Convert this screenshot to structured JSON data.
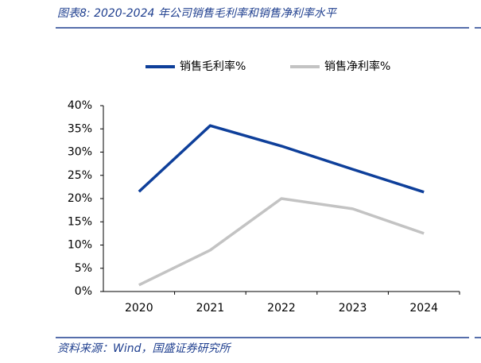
{
  "chart_data": {
    "type": "line",
    "title": "图表8: 2020-2024 年公司销售毛利率和销售净利率水平",
    "source": "资料来源：Wind，国盛证券研究所",
    "categories": [
      "2020",
      "2021",
      "2022",
      "2023",
      "2024"
    ],
    "series": [
      {
        "name": "销售毛利率%",
        "color": "#0e3f9a",
        "values": [
          21.5,
          35.7,
          31.3,
          26.3,
          21.4
        ]
      },
      {
        "name": "销售净利率%",
        "color": "#c3c3c3",
        "values": [
          1.4,
          8.9,
          20.0,
          17.8,
          12.5
        ]
      }
    ],
    "ylim": [
      0,
      40
    ],
    "yticks": [
      {
        "value": 0,
        "label": "0%"
      },
      {
        "value": 5,
        "label": "5%"
      },
      {
        "value": 10,
        "label": "10%"
      },
      {
        "value": 15,
        "label": "15%"
      },
      {
        "value": 20,
        "label": "20%"
      },
      {
        "value": 25,
        "label": "25%"
      },
      {
        "value": 30,
        "label": "30%"
      },
      {
        "value": 35,
        "label": "35%"
      },
      {
        "value": 40,
        "label": "40%"
      }
    ],
    "legend": "top"
  }
}
